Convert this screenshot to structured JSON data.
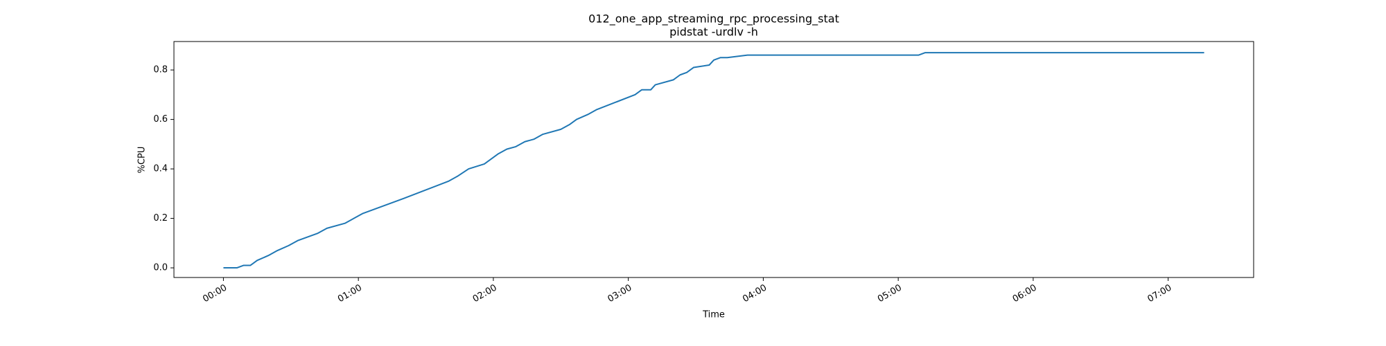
{
  "chart_data": {
    "type": "line",
    "title": "012_one_app_streaming_rpc_processing_stat",
    "subtitle": "pidstat -urdlv -h",
    "x_label": "Time",
    "y_label": "%CPU",
    "x": [
      0,
      6,
      9,
      12,
      15,
      20,
      24,
      29,
      33,
      42,
      46,
      54,
      62,
      71,
      80,
      100,
      104,
      109,
      116,
      122,
      126,
      130,
      134,
      138,
      142,
      150,
      154,
      157,
      162,
      166,
      183,
      186,
      190,
      192,
      200,
      203,
      206,
      209,
      216,
      218,
      221,
      224,
      233,
      309,
      312,
      436
    ],
    "series": [
      {
        "name": "%CPU",
        "color": "#1f77b4",
        "values": [
          0.0,
          0.0,
          0.01,
          0.01,
          0.03,
          0.05,
          0.07,
          0.09,
          0.11,
          0.14,
          0.16,
          0.18,
          0.22,
          0.25,
          0.28,
          0.35,
          0.37,
          0.4,
          0.42,
          0.46,
          0.48,
          0.49,
          0.51,
          0.52,
          0.54,
          0.56,
          0.58,
          0.6,
          0.62,
          0.64,
          0.7,
          0.72,
          0.72,
          0.74,
          0.76,
          0.78,
          0.79,
          0.81,
          0.82,
          0.84,
          0.85,
          0.85,
          0.86,
          0.86,
          0.87,
          0.87
        ]
      }
    ],
    "xlim": [
      -22,
      458
    ],
    "xticks": [
      {
        "value": 0,
        "label": "00:00"
      },
      {
        "value": 60,
        "label": "01:00"
      },
      {
        "value": 120,
        "label": "02:00"
      },
      {
        "value": 180,
        "label": "03:00"
      },
      {
        "value": 240,
        "label": "04:00"
      },
      {
        "value": 300,
        "label": "05:00"
      },
      {
        "value": 360,
        "label": "06:00"
      },
      {
        "value": 420,
        "label": "07:00"
      }
    ],
    "ylim": [
      -0.039,
      0.915
    ],
    "yticks": [
      {
        "value": 0,
        "label": "0.0"
      },
      0.2,
      0.4,
      0.6,
      0.8
    ],
    "grid": false
  }
}
